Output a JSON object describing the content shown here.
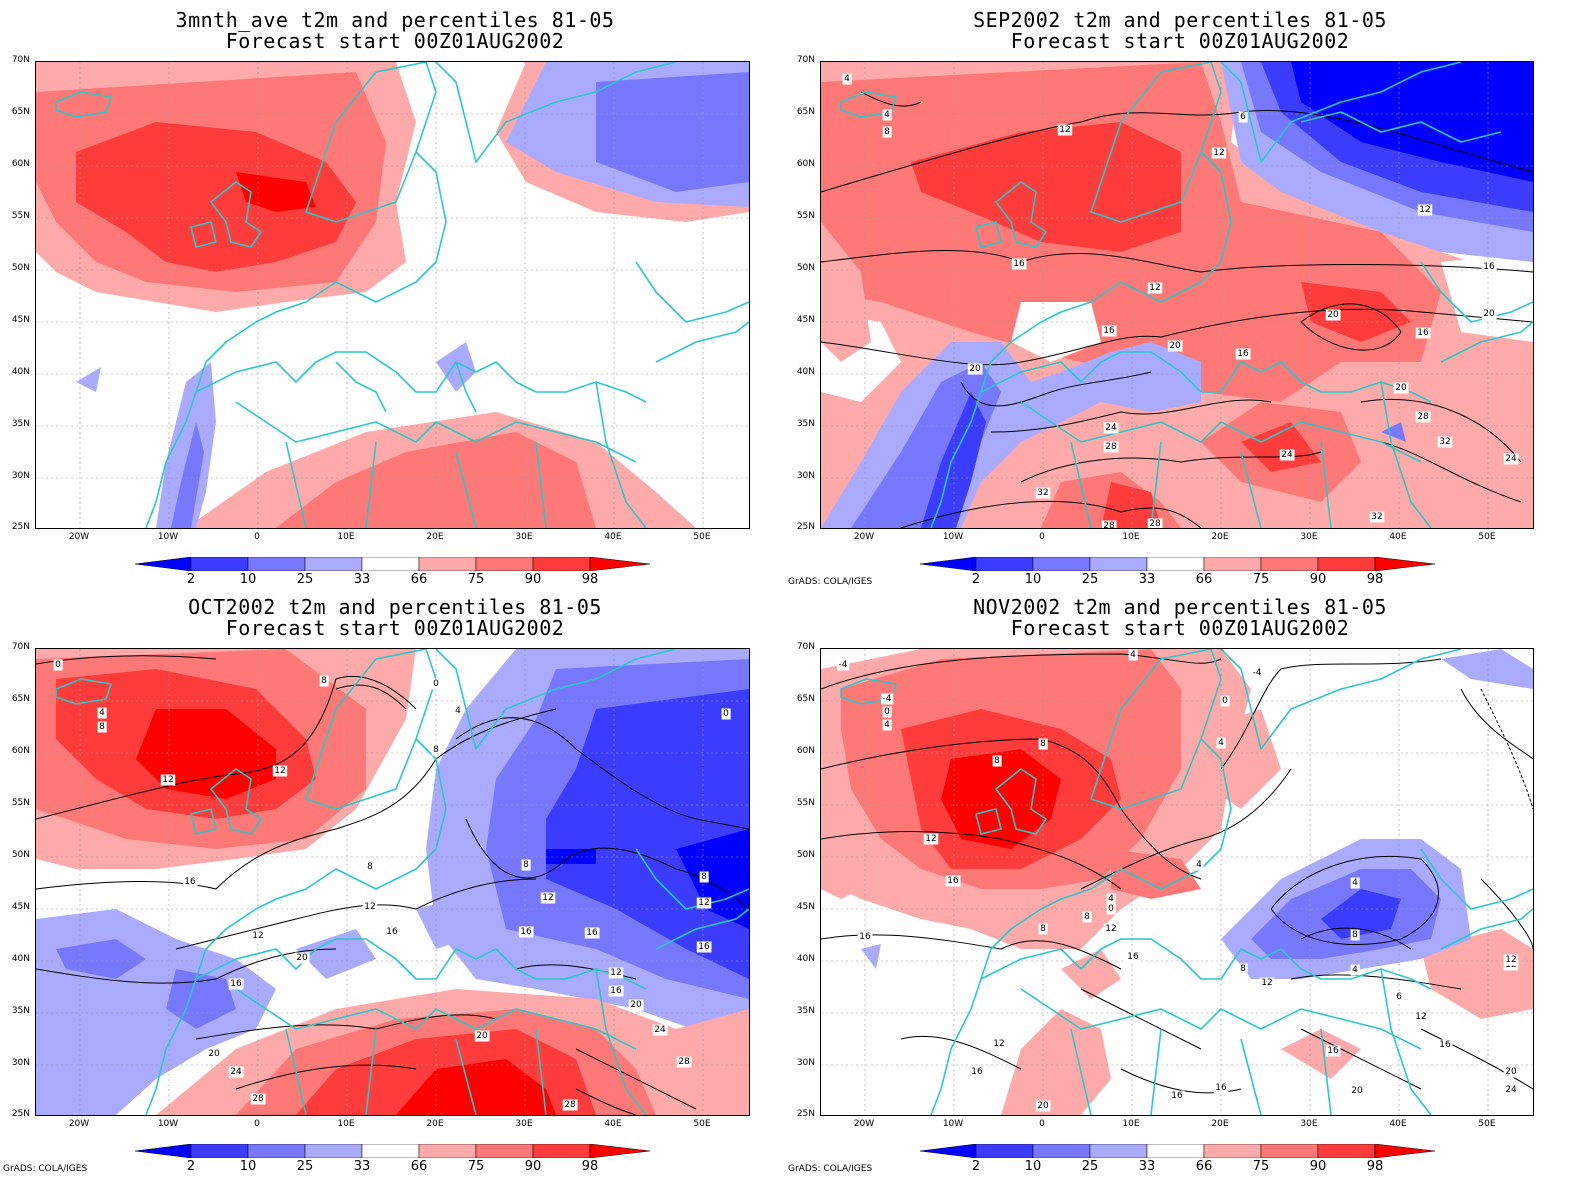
{
  "colors": {
    "blue_2": "#0000ff",
    "blue_10": "#3c3cff",
    "blue_25": "#7878ff",
    "blue_33": "#aaaaff",
    "red_66": "#ffaaaa",
    "red_75": "#ff7878",
    "red_90": "#ff3c3c",
    "red_98": "#ff0000",
    "coast": "#2ac8c8",
    "contour": "#000000"
  },
  "axes": {
    "lat_labels": [
      "70N",
      "65N",
      "60N",
      "55N",
      "50N",
      "45N",
      "40N",
      "35N",
      "30N",
      "25N"
    ],
    "lon_labels": [
      "20W",
      "10W",
      "0",
      "10E",
      "20E",
      "30E",
      "40E",
      "50E"
    ]
  },
  "colorbar": {
    "labels": [
      "2",
      "10",
      "25",
      "33",
      "66",
      "75",
      "90",
      "98"
    ]
  },
  "credit": "GrADS: COLA/IGES",
  "panels": [
    {
      "title_line1": "3mnth_ave t2m and percentiles 81-05",
      "title_line2": "Forecast start 00Z01AUG2002",
      "contour_labels": []
    },
    {
      "title_line1": "SEP2002 t2m and percentiles 81-05",
      "title_line2": "Forecast start 00Z01AUG2002",
      "contour_labels": [
        "4",
        "4",
        "8",
        "12",
        "6",
        "12",
        "12",
        "16",
        "12",
        "16",
        "16",
        "20",
        "20",
        "16",
        "20",
        "16",
        "20",
        "20",
        "24",
        "28",
        "28",
        "24",
        "24",
        "32",
        "32",
        "28",
        "28",
        "32"
      ]
    },
    {
      "title_line1": "OCT2002 t2m and percentiles 81-05",
      "title_line2": "Forecast start 00Z01AUG2002",
      "contour_labels": [
        "0",
        "4",
        "8",
        "8",
        "0",
        "4",
        "0",
        "8",
        "12",
        "12",
        "8",
        "16",
        "12",
        "12",
        "12",
        "16",
        "20",
        "16",
        "16",
        "16",
        "8",
        "8",
        "12",
        "16",
        "12",
        "16",
        "20",
        "20",
        "24",
        "28",
        "20",
        "24",
        "28",
        "28"
      ]
    },
    {
      "title_line1": "NOV2002 t2m and percentiles 81-05",
      "title_line2": "Forecast start 00Z01AUG2002",
      "contour_labels": [
        "-4",
        "-4",
        "0",
        "4",
        "4",
        "-4",
        "0",
        "4",
        "8",
        "8",
        "12",
        "16",
        "4",
        "4",
        "0",
        "8",
        "12",
        "8",
        "16",
        "16",
        "4",
        "8",
        "4",
        "12",
        "8",
        "12",
        "6",
        "12",
        "12",
        "16",
        "16",
        "16",
        "20",
        "20",
        "24",
        "16",
        "16",
        "20",
        "12"
      ]
    }
  ]
}
